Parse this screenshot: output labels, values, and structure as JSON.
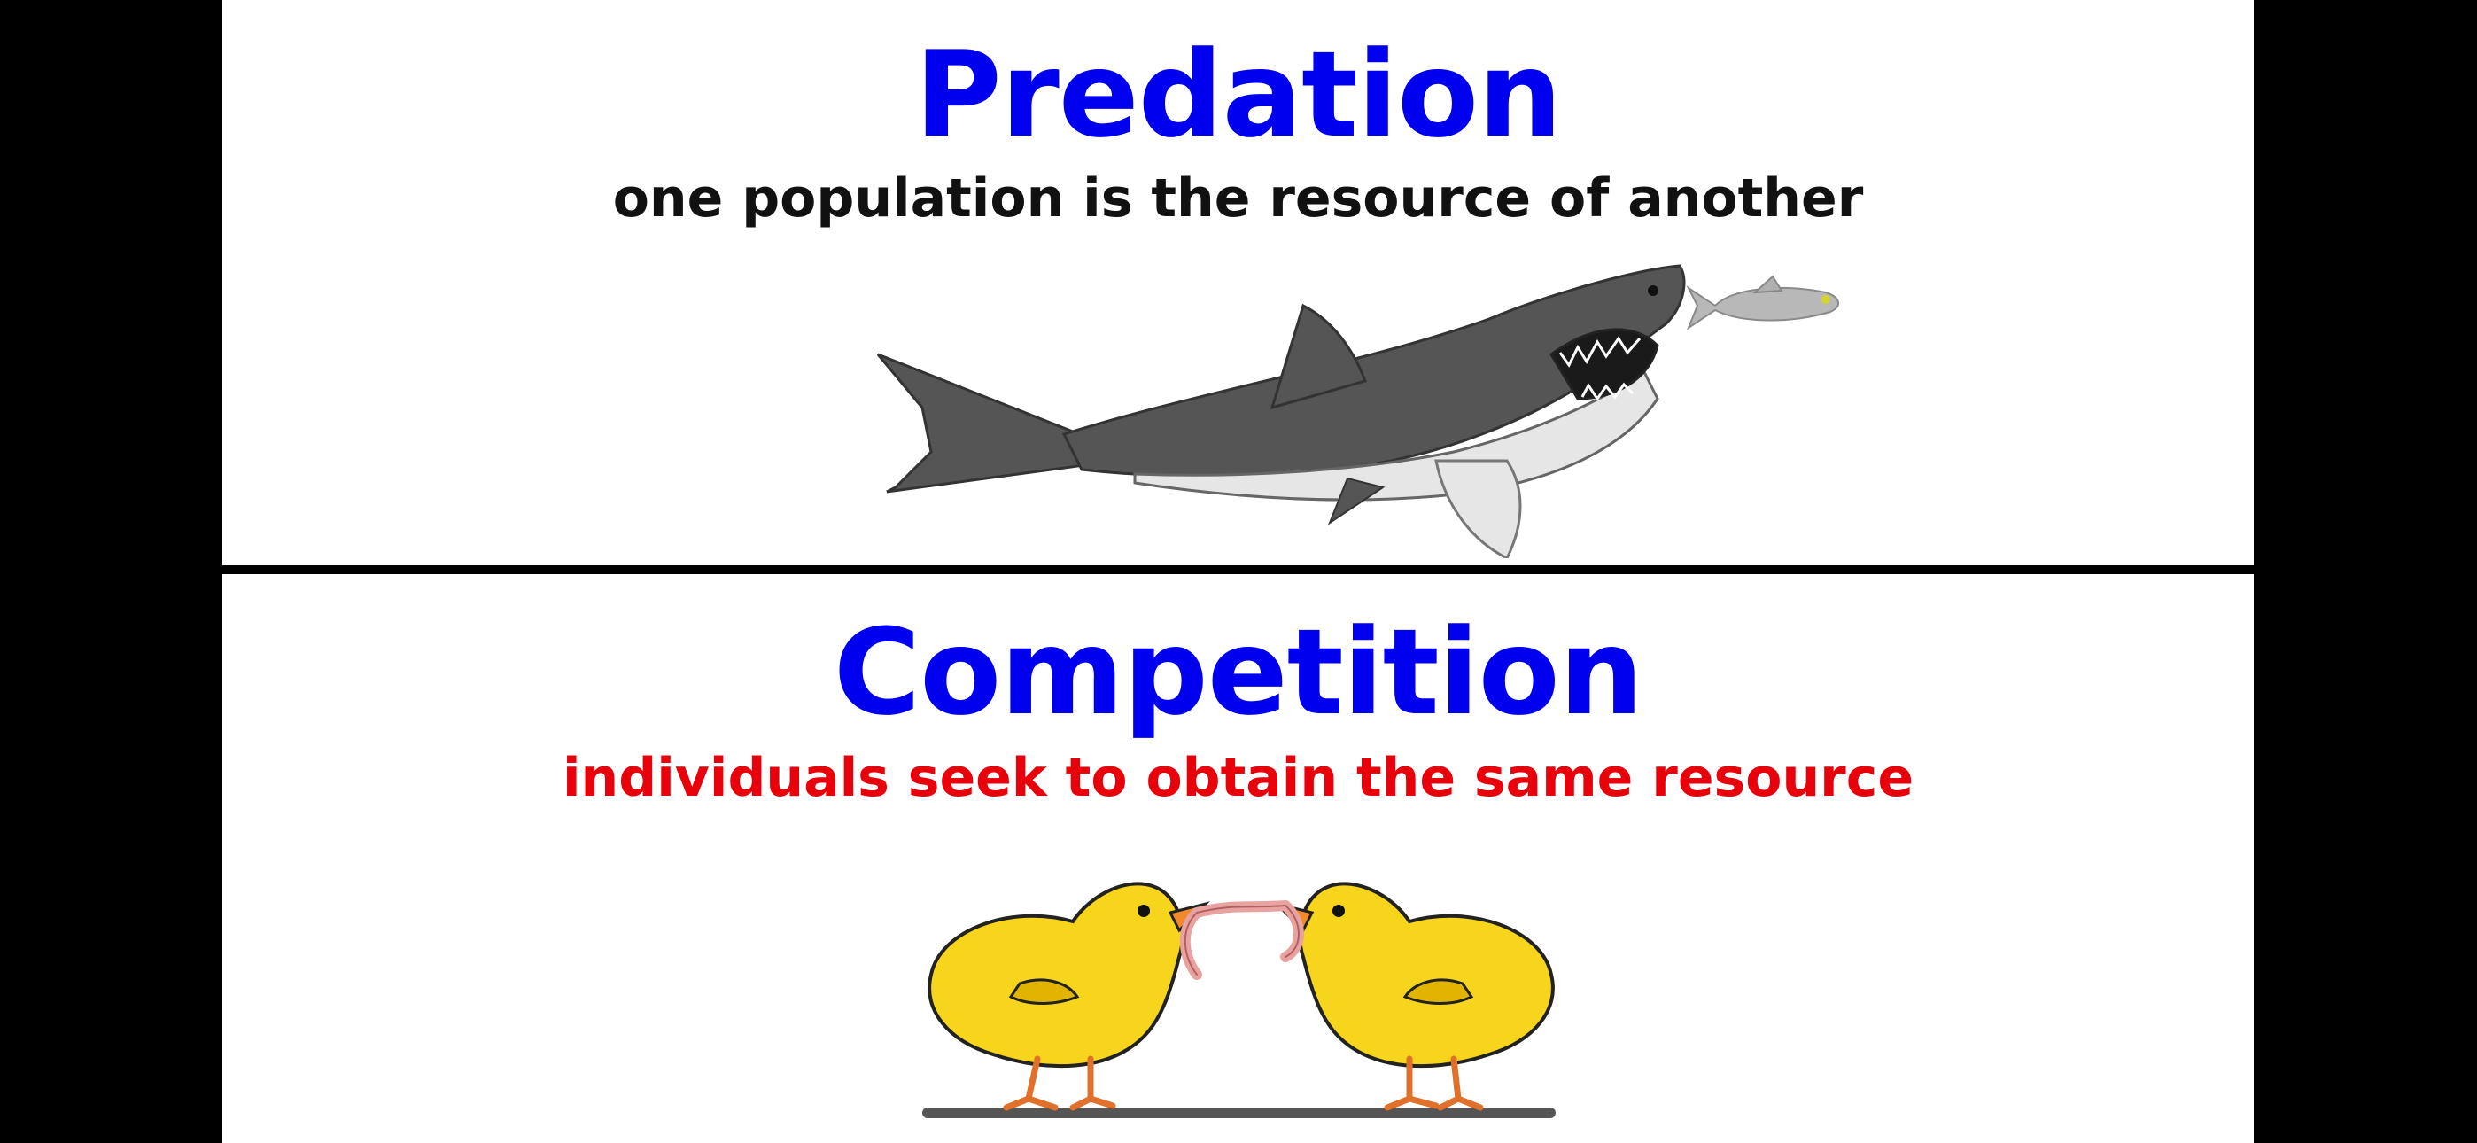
{
  "colors": {
    "background": "#000000",
    "slide": "#ffffff",
    "title_blue": "#0000ee",
    "desc_black": "#111111",
    "desc_red": "#e8000b"
  },
  "predation": {
    "title": "Predation",
    "description": "one population is the resource of another"
  },
  "competition": {
    "title": "Competition",
    "description": "individuals seek to obtain the same resource"
  }
}
